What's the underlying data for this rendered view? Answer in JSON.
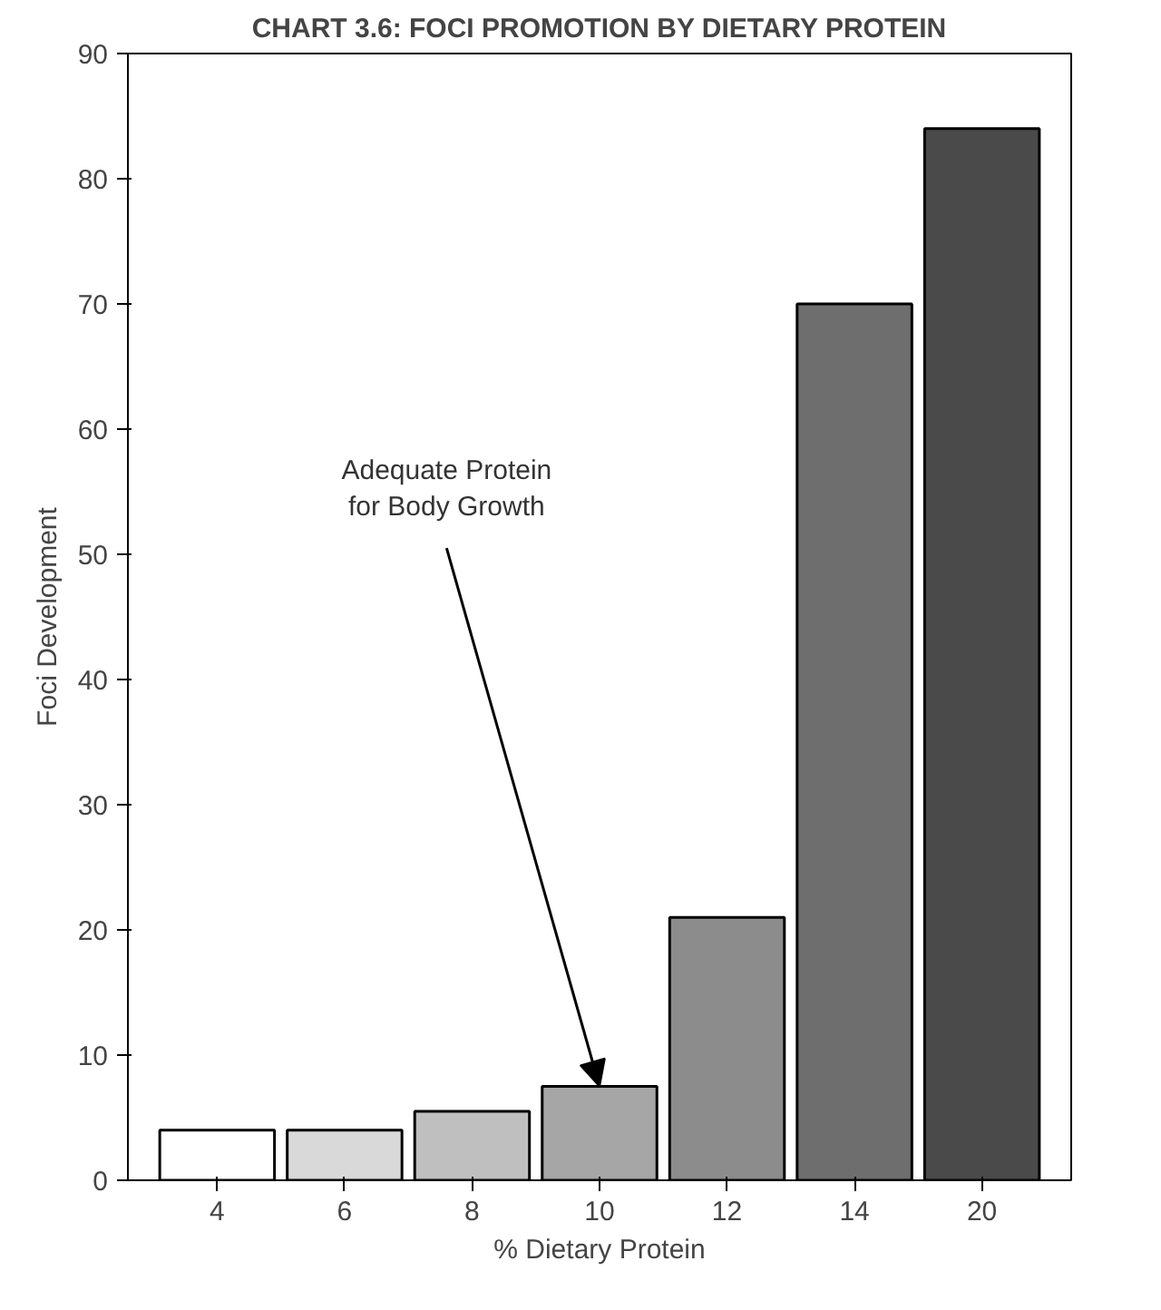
{
  "chart_data": {
    "type": "bar",
    "title": "CHART 3.6: FOCI PROMOTION BY DIETARY PROTEIN",
    "xlabel": "% Dietary Protein",
    "ylabel": "Foci Development",
    "categories": [
      "4",
      "6",
      "8",
      "10",
      "12",
      "14",
      "20"
    ],
    "values": [
      4,
      4,
      5.5,
      7.5,
      21,
      70,
      84
    ],
    "colors": [
      "#ffffff",
      "#d9d9d9",
      "#bfbfbf",
      "#a6a6a6",
      "#8c8c8c",
      "#6e6e6e",
      "#4a4a4a"
    ],
    "ylim": [
      0,
      90
    ],
    "yticks": [
      0,
      10,
      20,
      30,
      40,
      50,
      60,
      70,
      80,
      90
    ],
    "grid": false,
    "annotations": [
      {
        "text": "Adequate Protein\nfor Body Growth",
        "x": "10",
        "y": 7.5
      }
    ]
  }
}
